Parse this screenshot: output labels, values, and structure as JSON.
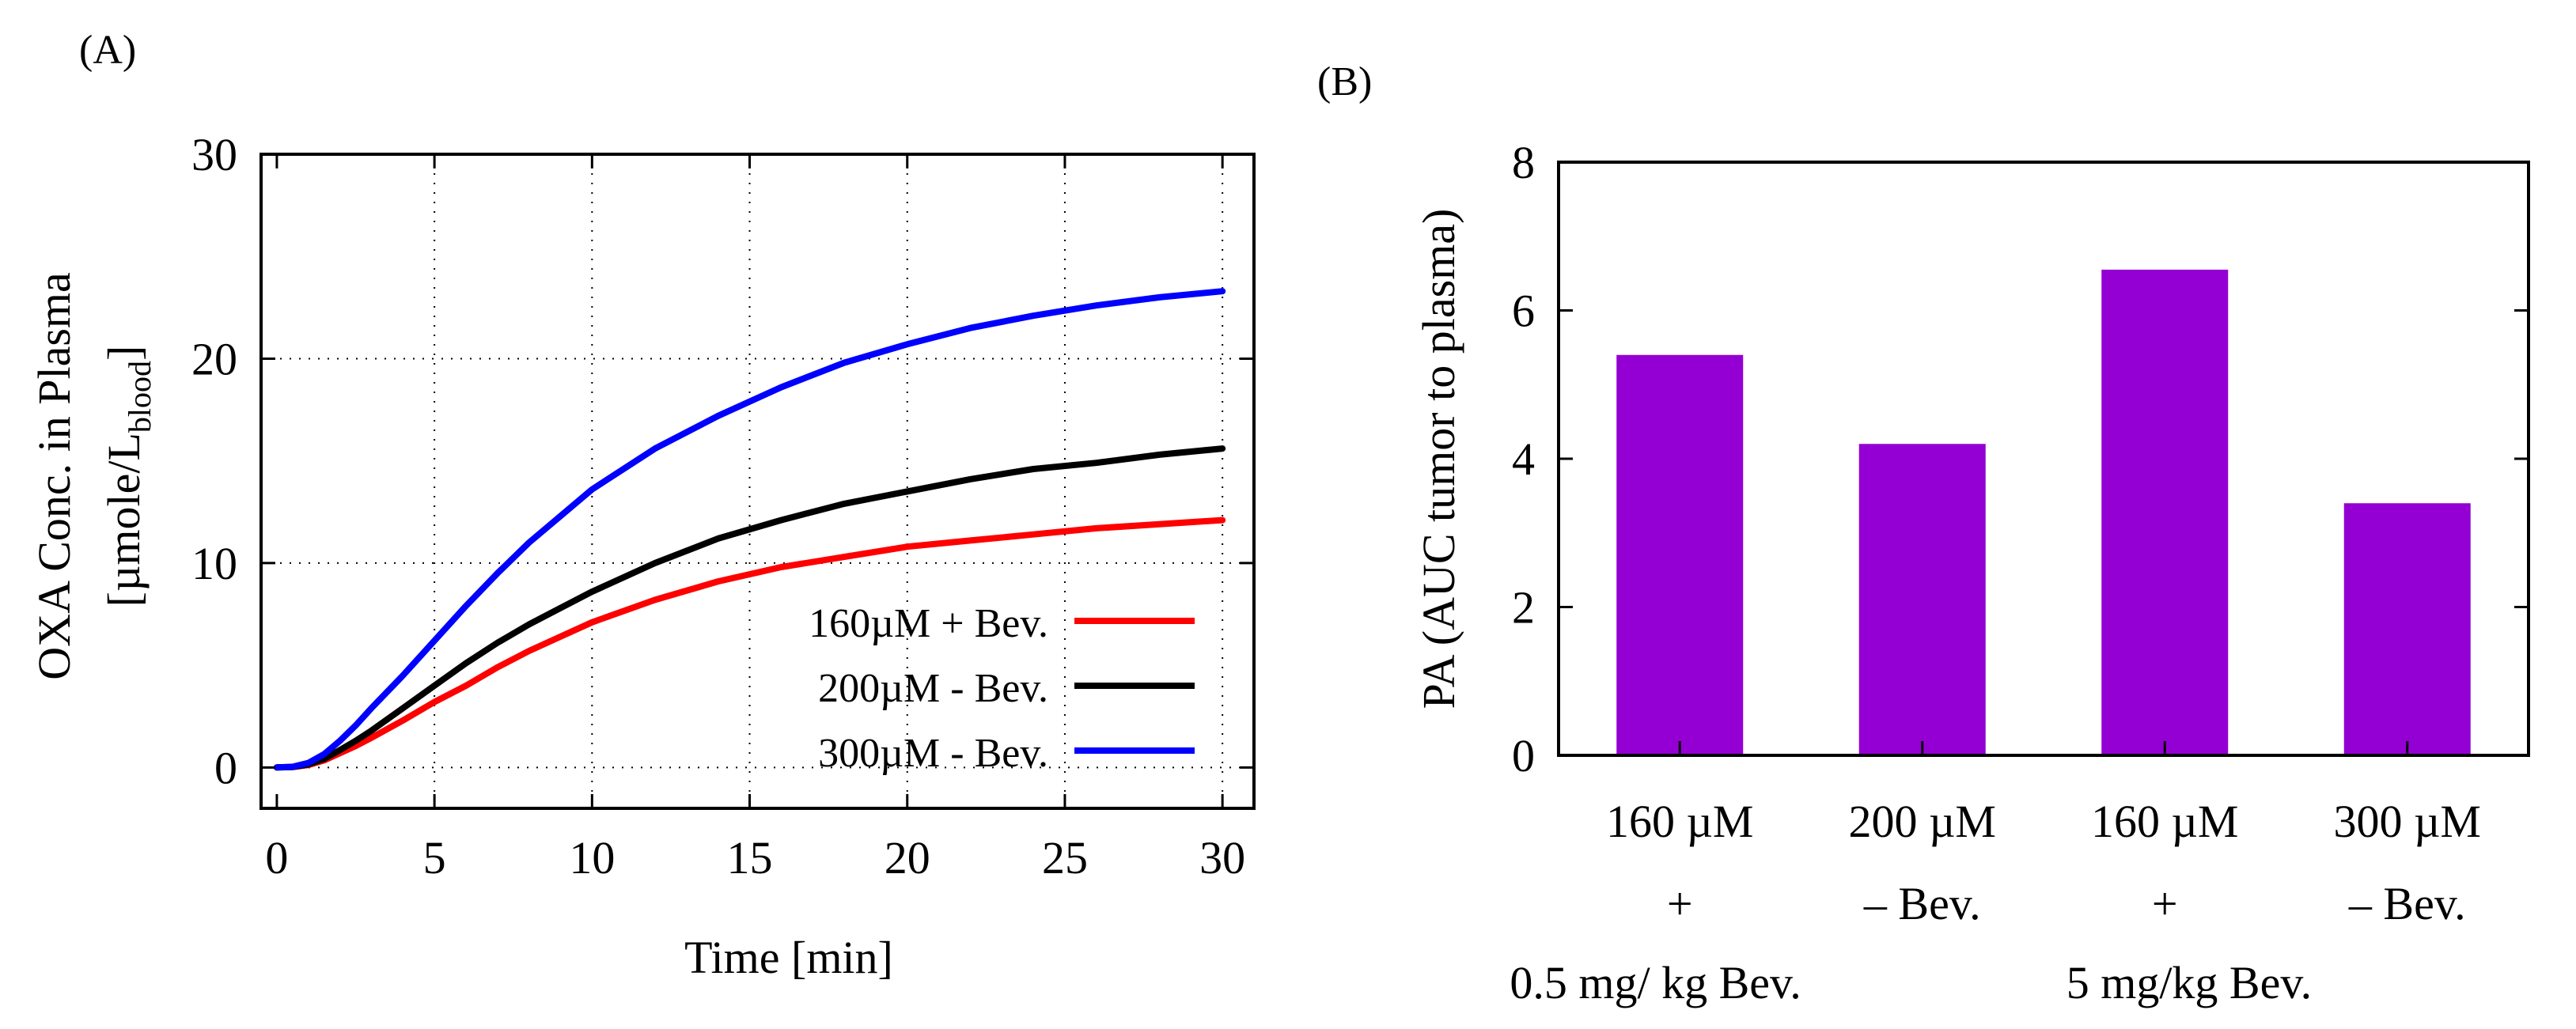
{
  "chart_data": [
    {
      "type": "line",
      "panel_label": "(A)",
      "xlabel": "Time [min]",
      "ylabel_main": "OXA Conc. in Plasma",
      "ylabel_unit_prefix": "[µmole/L",
      "ylabel_unit_sub": "blood",
      "ylabel_unit_suffix": "]",
      "xlim": [
        -0.5,
        31
      ],
      "ylim": [
        -2,
        30
      ],
      "xticks": [
        0,
        5,
        10,
        15,
        20,
        25,
        30
      ],
      "yticks": [
        0,
        10,
        20,
        30
      ],
      "grid": true,
      "legend_position": "bottom-right",
      "x": [
        0,
        0.5,
        1,
        1.5,
        2,
        2.5,
        3,
        4,
        5,
        6,
        7,
        8,
        9,
        10,
        12,
        14,
        16,
        18,
        20,
        22,
        24,
        26,
        28,
        30
      ],
      "series": [
        {
          "name": "160µM + Bev.",
          "color": "#ff0000",
          "values": [
            0,
            0.02,
            0.12,
            0.35,
            0.7,
            1.05,
            1.45,
            2.3,
            3.2,
            4.0,
            4.9,
            5.7,
            6.4,
            7.1,
            8.2,
            9.1,
            9.8,
            10.3,
            10.8,
            11.1,
            11.4,
            11.7,
            11.9,
            12.1
          ]
        },
        {
          "name": "200µM - Bev.",
          "color": "#000000",
          "values": [
            0,
            0.02,
            0.15,
            0.42,
            0.85,
            1.3,
            1.8,
            2.9,
            4.0,
            5.1,
            6.1,
            7.0,
            7.8,
            8.6,
            10.0,
            11.2,
            12.1,
            12.9,
            13.5,
            14.1,
            14.6,
            14.9,
            15.3,
            15.6
          ]
        },
        {
          "name": "300µM - Bev.",
          "color": "#0000ff",
          "values": [
            0,
            0.03,
            0.22,
            0.65,
            1.3,
            2.05,
            2.9,
            4.5,
            6.2,
            7.9,
            9.5,
            11.0,
            12.3,
            13.6,
            15.6,
            17.2,
            18.6,
            19.8,
            20.7,
            21.5,
            22.1,
            22.6,
            23.0,
            23.3
          ]
        }
      ]
    },
    {
      "type": "bar",
      "panel_label": "(B)",
      "ylabel": "PA (AUC tumor to plasma)",
      "ylim": [
        0,
        8
      ],
      "yticks": [
        0,
        2,
        4,
        6,
        8
      ],
      "grid": false,
      "bar_color": "#9400d3",
      "categories": [
        {
          "line1": "160 µM",
          "line2": "+"
        },
        {
          "line1": "200 µM",
          "line2": "– Bev."
        },
        {
          "line1": "160 µM",
          "line2": "+"
        },
        {
          "line1": "300 µM",
          "line2": "– Bev."
        }
      ],
      "values": [
        5.4,
        4.2,
        6.55,
        3.4
      ],
      "group_labels": [
        "0.5 mg/ kg Bev.",
        "5 mg/kg  Bev."
      ]
    }
  ]
}
